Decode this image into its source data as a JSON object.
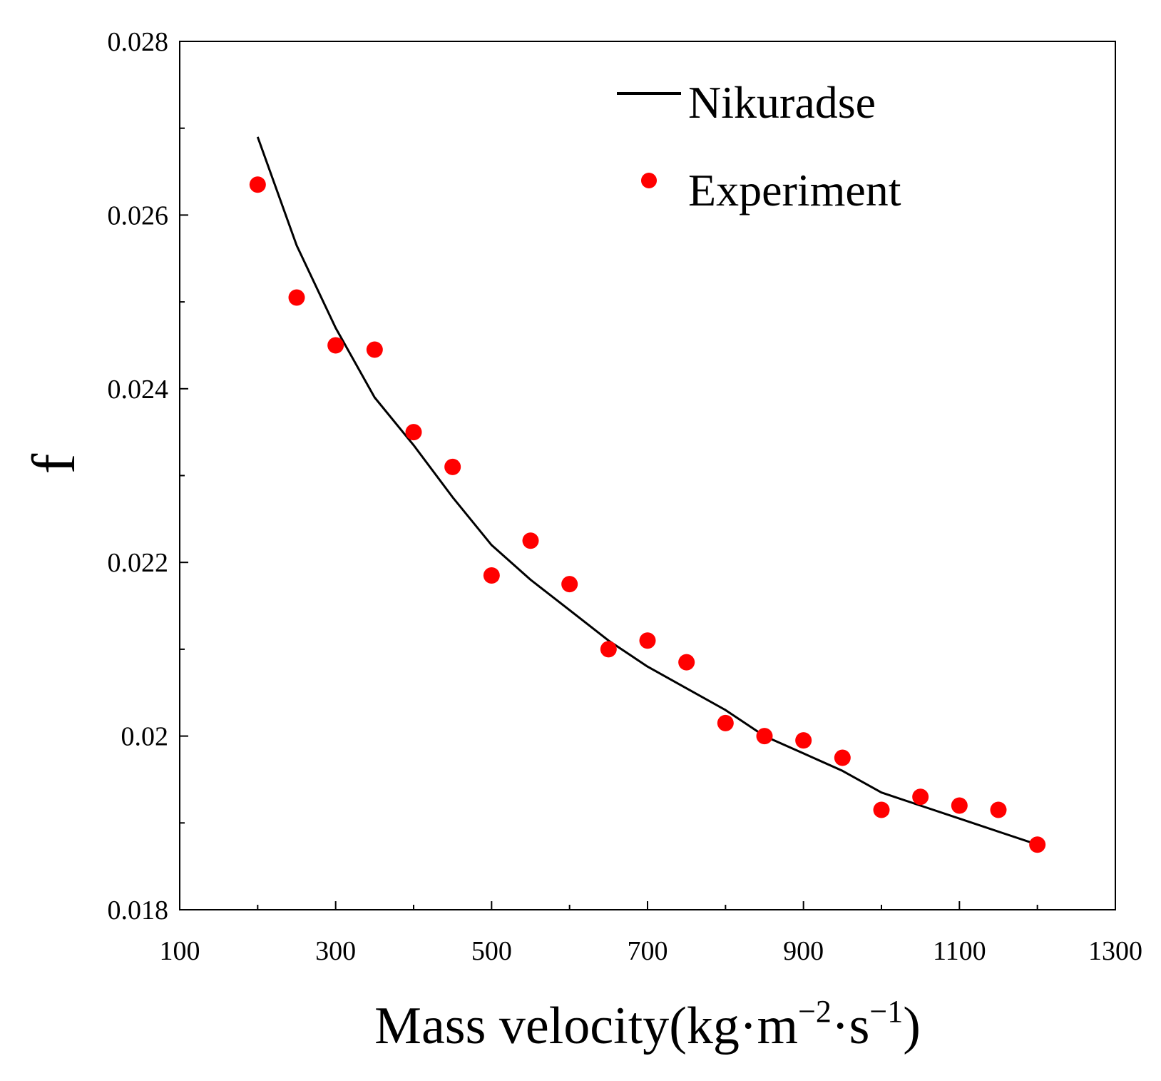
{
  "chart_data": {
    "type": "line+scatter",
    "title": "",
    "xlabel": "Mass velocity(kg·m⁻²·s⁻¹)",
    "xlabel_parts": {
      "main": "Mass velocity(kg·m",
      "exp1": "−2",
      "mid": "·s",
      "exp2": "−1",
      "end": ")"
    },
    "ylabel": "f",
    "xlim": [
      100,
      1300
    ],
    "ylim": [
      0.018,
      0.028
    ],
    "xticks": [
      100,
      300,
      500,
      700,
      900,
      1100,
      1300
    ],
    "xtick_labels": [
      "100",
      "300",
      "500",
      "700",
      "900",
      "1100",
      "1300"
    ],
    "yticks": [
      0.018,
      0.02,
      0.022,
      0.024,
      0.026,
      0.028
    ],
    "ytick_labels": [
      "0.018",
      "0.02",
      "0.022",
      "0.024",
      "0.026",
      "0.028"
    ],
    "grid": false,
    "legend_position": "top-right",
    "series": [
      {
        "name": "Nikuradse",
        "kind": "line",
        "color": "#000000",
        "x": [
          200,
          250,
          300,
          350,
          400,
          450,
          500,
          550,
          600,
          650,
          700,
          750,
          800,
          850,
          900,
          950,
          1000,
          1050,
          1100,
          1150,
          1200
        ],
        "y": [
          0.0269,
          0.02565,
          0.0247,
          0.0239,
          0.02335,
          0.02275,
          0.0222,
          0.0218,
          0.02145,
          0.0211,
          0.0208,
          0.02055,
          0.0203,
          0.02,
          0.0198,
          0.0196,
          0.01935,
          0.0192,
          0.01905,
          0.0189,
          0.01875
        ]
      },
      {
        "name": "Experiment",
        "kind": "scatter",
        "color": "#ff0000",
        "x": [
          200,
          250,
          300,
          350,
          400,
          450,
          500,
          550,
          600,
          650,
          700,
          750,
          800,
          850,
          900,
          950,
          1000,
          1050,
          1100,
          1150,
          1200
        ],
        "y": [
          0.02635,
          0.02505,
          0.0245,
          0.02445,
          0.0235,
          0.0231,
          0.02185,
          0.02225,
          0.02175,
          0.021,
          0.0211,
          0.02085,
          0.02015,
          0.02,
          0.01995,
          0.01975,
          0.01915,
          0.0193,
          0.0192,
          0.01915,
          0.01875
        ]
      }
    ]
  }
}
